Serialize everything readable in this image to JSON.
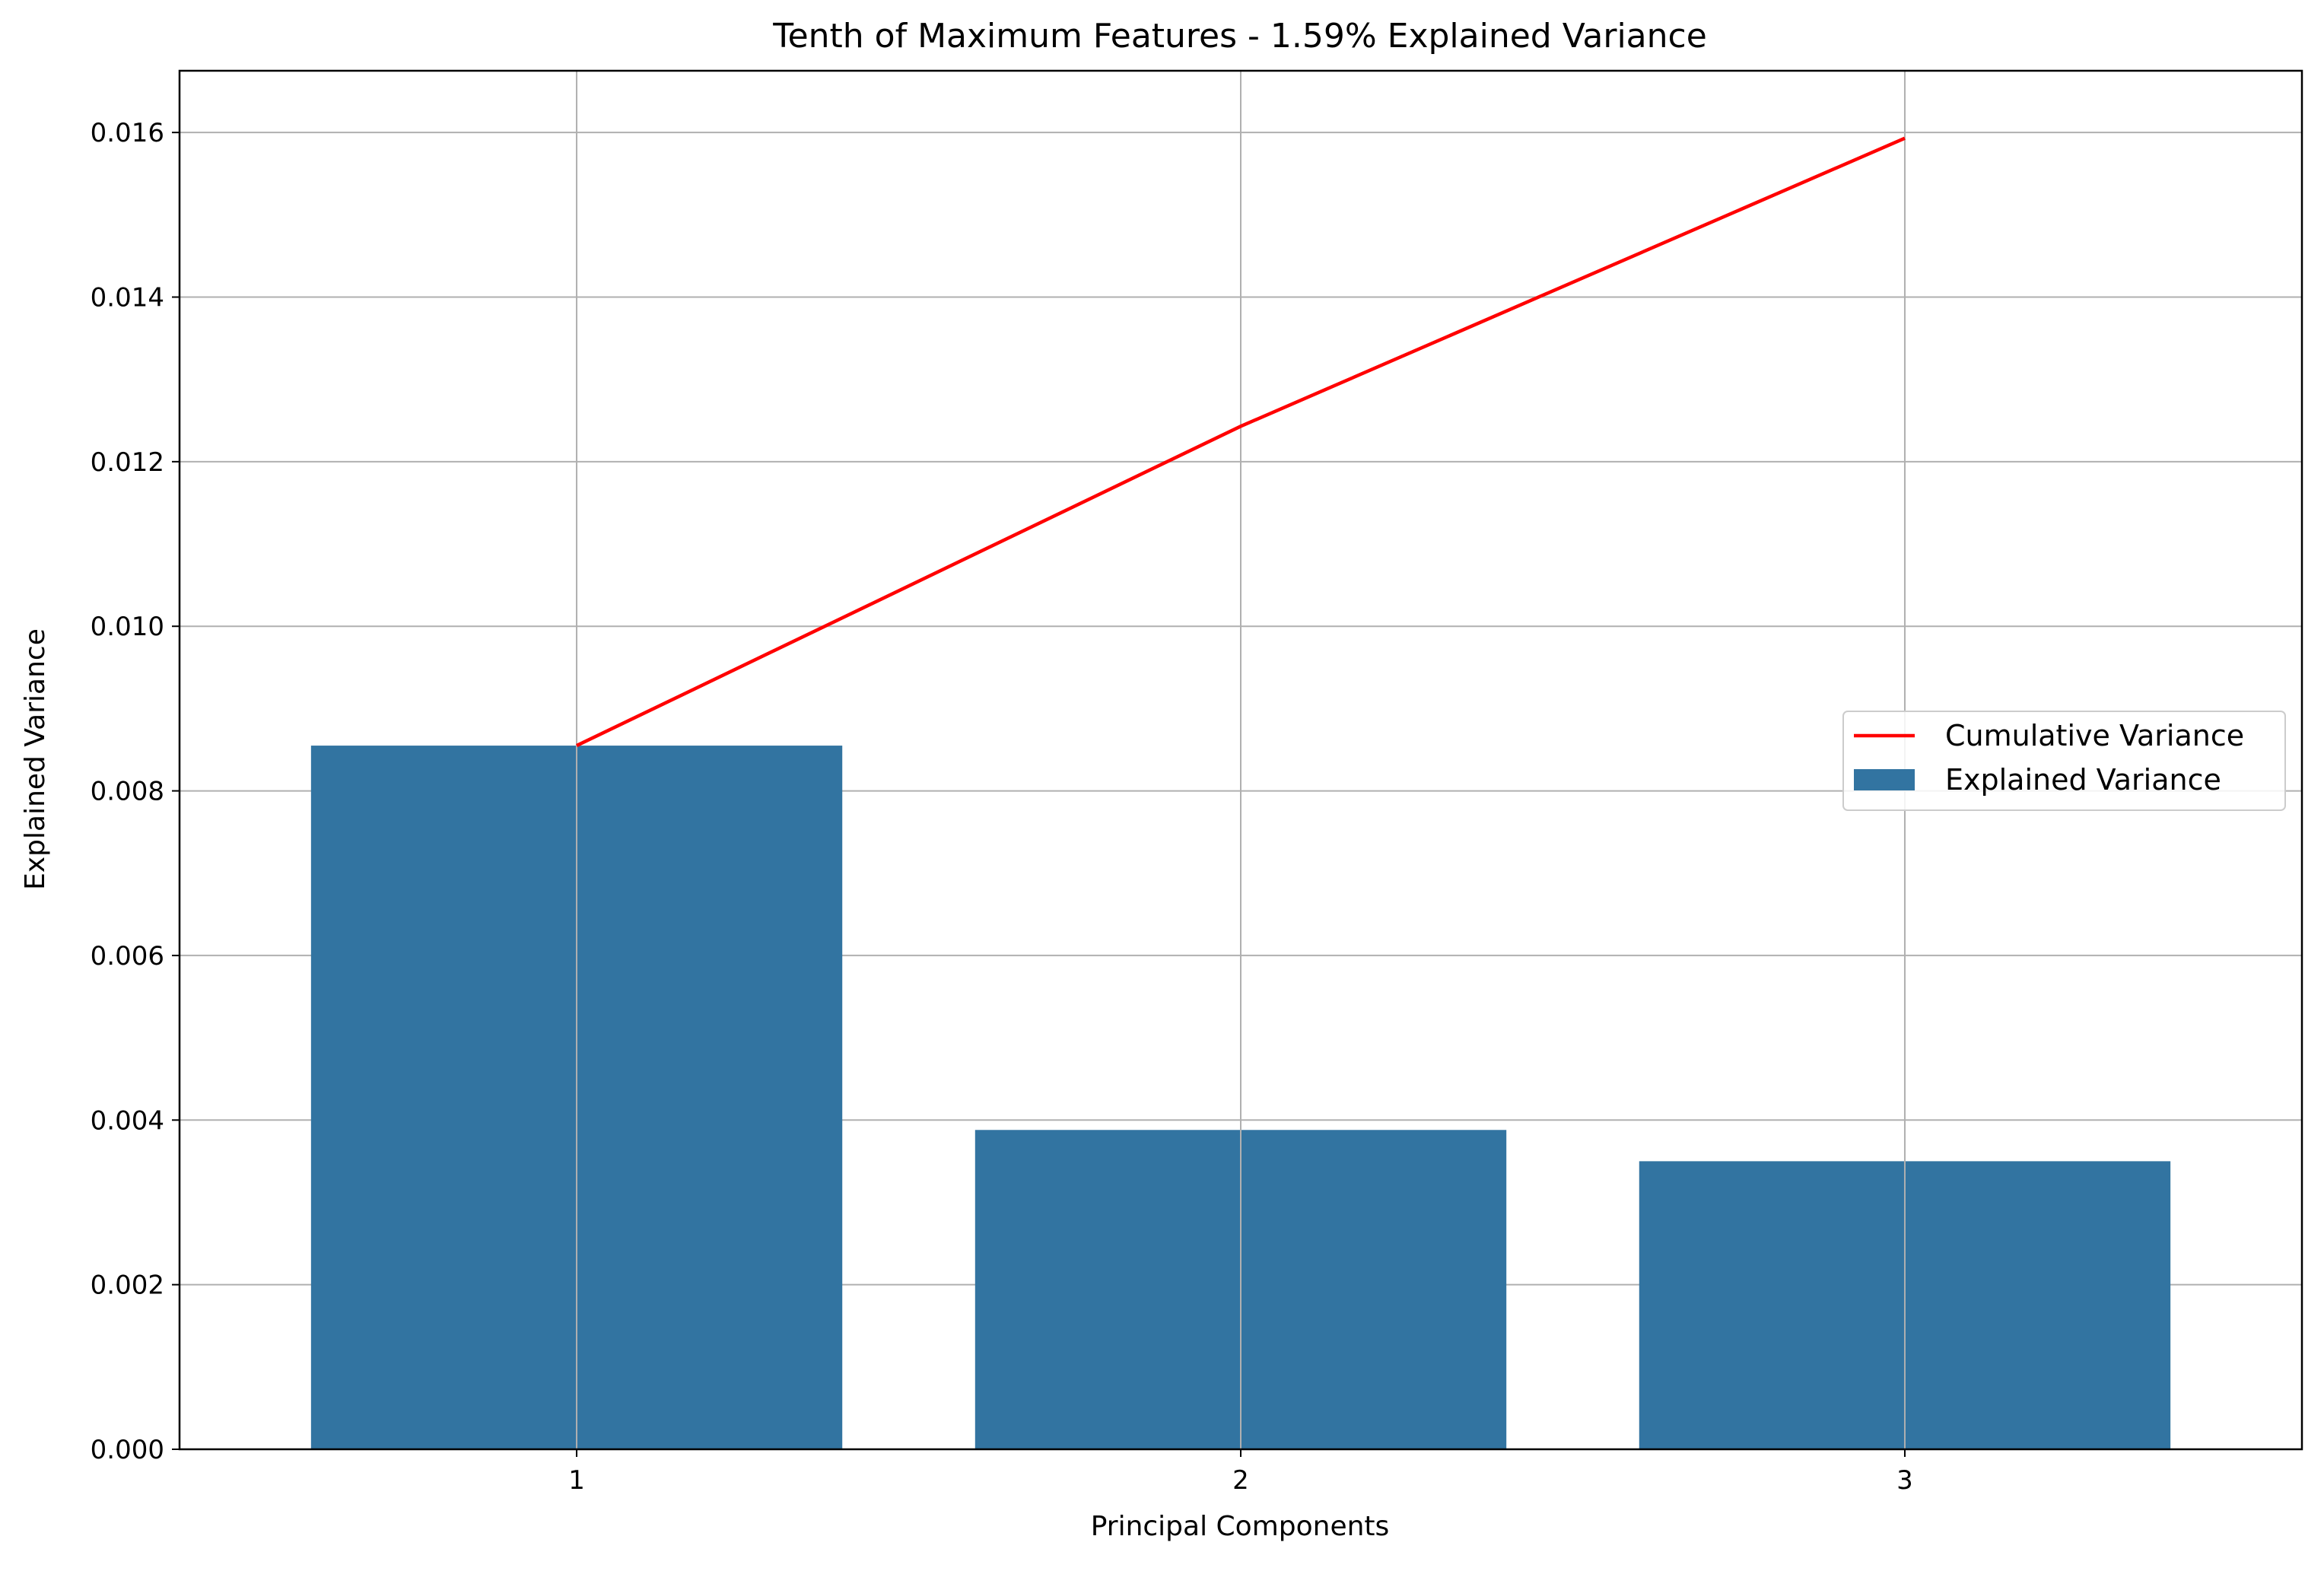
{
  "chart_data": {
    "type": "bar",
    "title": "Tenth of Maximum Features - 1.59% Explained Variance",
    "xlabel": "Principal Components",
    "ylabel": "Explained Variance",
    "categories": [
      "1",
      "2",
      "3"
    ],
    "ylim": [
      0,
      0.01675
    ],
    "yticks": [
      "0.000",
      "0.002",
      "0.004",
      "0.006",
      "0.008",
      "0.010",
      "0.012",
      "0.014",
      "0.016"
    ],
    "grid": true,
    "legend_position": "center-right",
    "series": [
      {
        "name": "Explained Variance",
        "type": "bar",
        "color": "#3274a1",
        "values": [
          0.00855,
          0.00388,
          0.0035
        ]
      },
      {
        "name": "Cumulative Variance",
        "type": "line",
        "color": "#ff0000",
        "values": [
          0.00855,
          0.01243,
          0.01593
        ]
      }
    ],
    "legend": [
      {
        "label": "Cumulative Variance",
        "kind": "line",
        "color": "#ff0000"
      },
      {
        "label": "Explained Variance",
        "kind": "bar",
        "color": "#3274a1"
      }
    ]
  }
}
